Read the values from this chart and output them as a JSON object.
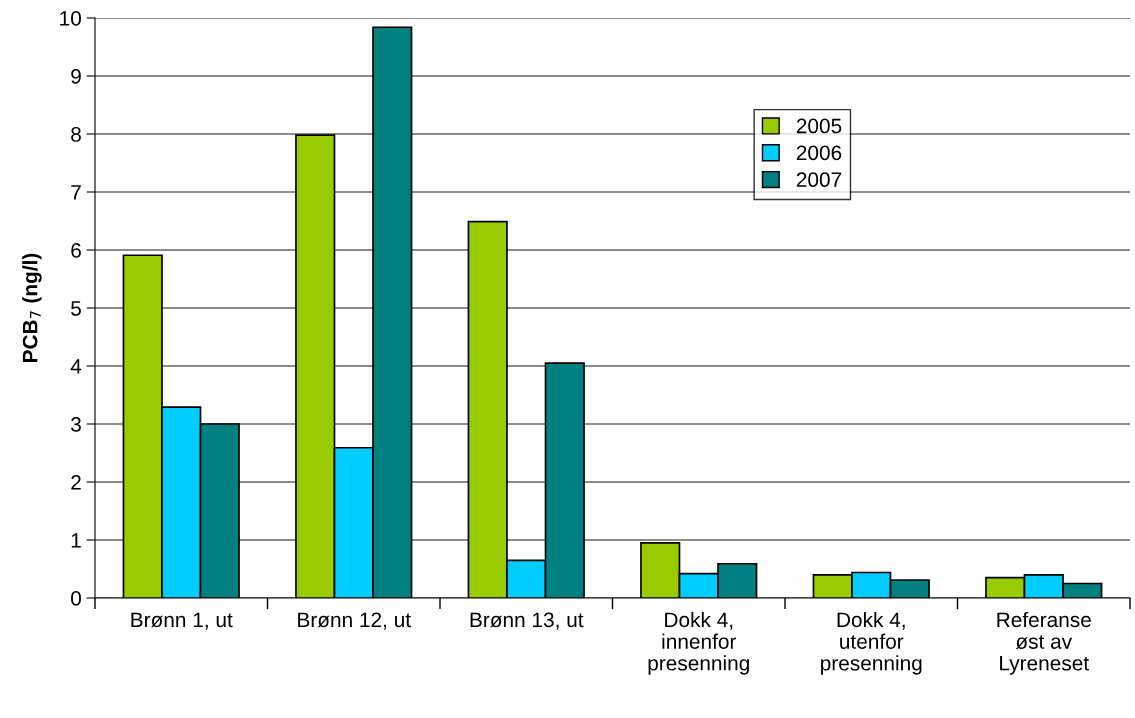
{
  "chart_data": {
    "type": "bar",
    "ylabel": "PCB$_{7}$ (ng/l)",
    "categories": [
      "Brønn 1, ut",
      "Brønn 12, ut",
      "Brønn 13, ut",
      "Dokk 4,\ninnenfor\npresenning",
      "Dokk 4,\nutenfor\npresenning",
      "Referanse\nøst av\nLyreneset"
    ],
    "series": [
      {
        "name": "2005",
        "color": "#99cc00",
        "values": [
          5.91,
          7.98,
          6.49,
          0.95,
          0.4,
          0.35
        ]
      },
      {
        "name": "2006",
        "color": "#00ccff",
        "values": [
          3.29,
          2.59,
          0.65,
          0.42,
          0.44,
          0.4
        ]
      },
      {
        "name": "2007",
        "color": "#008080",
        "values": [
          3.0,
          9.84,
          4.05,
          0.59,
          0.31,
          0.25
        ]
      }
    ],
    "ylim": [
      0,
      10
    ],
    "yticks": [
      0,
      1,
      2,
      3,
      4,
      5,
      6,
      7,
      8,
      9,
      10
    ],
    "grid": "y",
    "legend": "top right"
  }
}
